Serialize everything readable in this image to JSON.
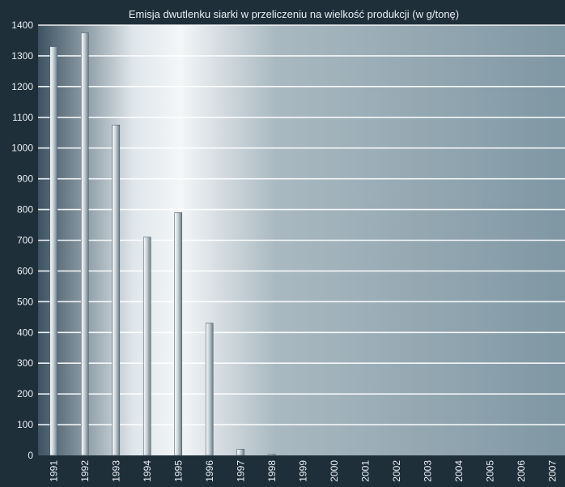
{
  "chart_data": {
    "type": "bar",
    "title": "Emisja dwutlenku siarki w przeliczeniu na wielkość produkcji (w g/tonę)",
    "xlabel": "",
    "ylabel": "",
    "categories": [
      "1991",
      "1992",
      "1993",
      "1994",
      "1995",
      "1996",
      "1997",
      "1998",
      "1999",
      "2000",
      "2001",
      "2002",
      "2003",
      "2004",
      "2005",
      "2006",
      "2007"
    ],
    "values": [
      1330,
      1375,
      1075,
      710,
      790,
      430,
      20,
      3,
      0,
      0,
      0,
      0,
      0,
      0,
      0,
      0,
      0
    ],
    "ylim": [
      0,
      1400
    ],
    "yticks": [
      0,
      100,
      200,
      300,
      400,
      500,
      600,
      700,
      800,
      900,
      1000,
      1100,
      1200,
      1300,
      1400
    ],
    "grid": true,
    "legend": "none",
    "colors": {
      "background_dark": "#1f2f3a",
      "plot_left": "#3c5261",
      "plot_highlight": "#f4f6f8",
      "plot_right": "#7f97a3",
      "gridline": "#ffffff",
      "bar_light": "#ffffff",
      "bar_dark": "#6c7d88"
    }
  }
}
